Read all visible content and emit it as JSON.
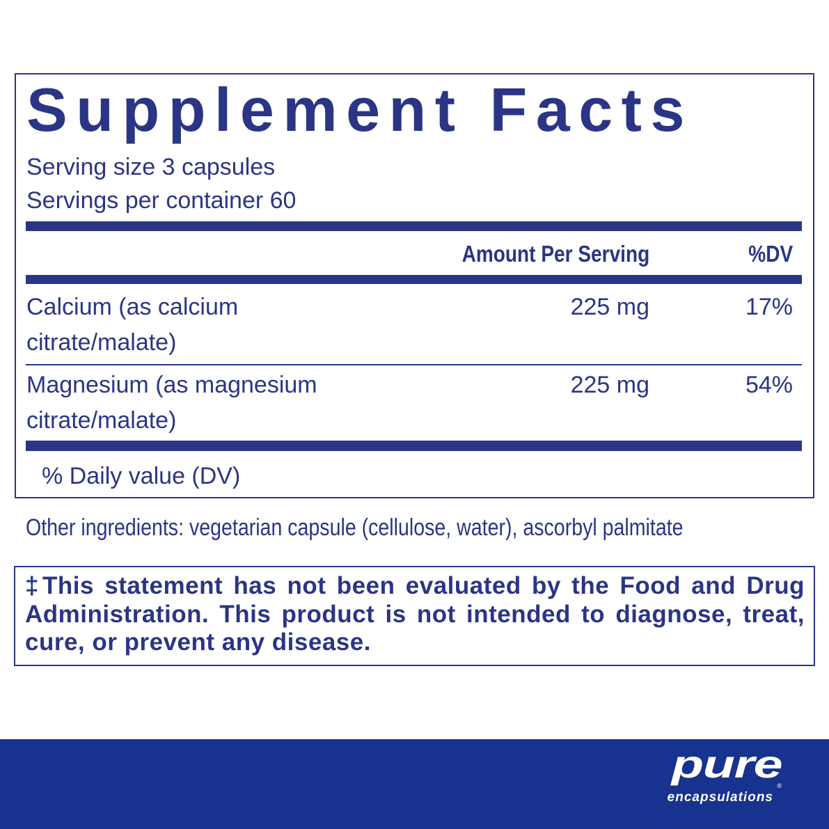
{
  "label": {
    "title": "Supplement Facts",
    "serving_size": "Serving size  3 capsules",
    "servings_per_container": "Servings per container  60",
    "columns": {
      "amount": "Amount Per Serving",
      "dv": "%DV"
    },
    "rows": [
      {
        "name_line1": "Calcium (as calcium",
        "name_line2": "citrate/malate)",
        "amount": "225 mg",
        "dv": "17%"
      },
      {
        "name_line1": "Magnesium (as magnesium",
        "name_line2": "citrate/malate)",
        "amount": "225 mg",
        "dv": "54%"
      }
    ],
    "footnote": "% Daily value (DV)"
  },
  "other_ingredients": "Other ingredients: vegetarian capsule (cellulose, water), ascorbyl palmitate",
  "disclaimer": "‡This statement has not been evaluated by the Food and Drug Administration. This product is not intended to diagnose, treat, cure, or prevent any disease.",
  "brand": {
    "name": "pure",
    "subtitle": "encapsulations",
    "registered": "®"
  },
  "colors": {
    "text": "#2b3585",
    "footer": "#17338f"
  }
}
